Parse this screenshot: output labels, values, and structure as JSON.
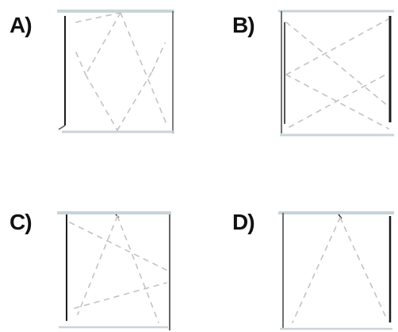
{
  "options": [
    {
      "id": "A",
      "label": "A)"
    },
    {
      "id": "B",
      "label": "B)"
    },
    {
      "id": "C",
      "label": "C)"
    },
    {
      "id": "D",
      "label": "D)"
    }
  ],
  "colors": {
    "frame_dark": "#1c1c1c",
    "frame_light": "#c9d4d9",
    "dashed_line": "#c3c3c3"
  }
}
